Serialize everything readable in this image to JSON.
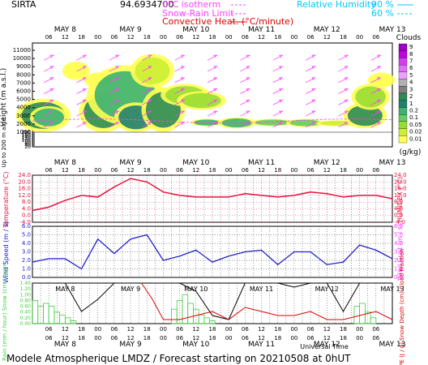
{
  "header": {
    "station": "SIRTA",
    "code": "94.6934700",
    "legend": {
      "isotherm": "0°C isotherm",
      "snow_rain": "Snow-Rain Limit",
      "convective": "Convective Heat. (°C/minute)",
      "rh": "Relative Humidity",
      "rh90": "90 %",
      "rh60": "60 %"
    }
  },
  "days": [
    "MAY  8",
    "MAY  9",
    "MAY 10",
    "MAY 11",
    "MAY 12",
    "MAY 13"
  ],
  "hours": [
    "06",
    "12",
    "18",
    "00"
  ],
  "colorbar": {
    "title": "Clouds",
    "unit": "(g/kg)",
    "ticks": [
      "9",
      "8",
      "7",
      "6",
      "5",
      "4",
      "3",
      "2",
      "1",
      "0.2",
      "0.1",
      "0.05",
      "0.02",
      "0.01"
    ],
    "colors": [
      "#a000c8",
      "#c000e0",
      "#d040f0",
      "#e070f8",
      "#f0a0ff",
      "#b0b0b0",
      "#808080",
      "#2e8b57",
      "#208070",
      "#3cb371",
      "#66cc66",
      "#99dd33",
      "#ccee33",
      "#ffff55"
    ]
  },
  "chart_data": [
    {
      "type": "heatmap",
      "title": "Clouds",
      "ylabel": "Height (m a.s.l.)",
      "ylabel2": "Up to 200 m a.g.l.",
      "yticks": [
        "11000",
        "10000",
        "9000",
        "8000",
        "7000",
        "6000",
        "5000",
        "4000",
        "3000",
        "2000",
        "1000",
        "200",
        "180",
        "160",
        "140",
        "120",
        "100",
        "80",
        "60",
        "40",
        "20"
      ],
      "xlabel": "Universal Time",
      "x_range_hours": [
        0,
        132
      ]
    },
    {
      "type": "line",
      "ylabel": "Temperature (°C)",
      "ylabel2": "HUMIDEX (°C)",
      "yticks": [
        "24.0",
        "20.0",
        "16.0",
        "12.0",
        "8.0",
        "4.0",
        "0.0",
        "-4.0"
      ],
      "ylim": [
        -4,
        24
      ],
      "x_hours": [
        0,
        6,
        12,
        18,
        24,
        30,
        36,
        42,
        48,
        54,
        60,
        66,
        72,
        78,
        84,
        90,
        96,
        102,
        108,
        114,
        120,
        126,
        132
      ],
      "series": [
        {
          "values": [
            3,
            5,
            9,
            12,
            11,
            17,
            22,
            20,
            14,
            12,
            11,
            11,
            11,
            13,
            12,
            11,
            12,
            14,
            13,
            11,
            12,
            12,
            10
          ]
        }
      ]
    },
    {
      "type": "line",
      "ylabel": "Wind Speed (m / s)",
      "ylabel2": "Wind Gust (m / s)",
      "yticks": [
        "6.0",
        "5.0",
        "4.0",
        "3.0",
        "2.0",
        "1.0",
        "0.0"
      ],
      "ylim": [
        0,
        6
      ],
      "x_hours": [
        0,
        6,
        12,
        18,
        24,
        30,
        36,
        42,
        48,
        54,
        60,
        66,
        72,
        78,
        84,
        90,
        96,
        102,
        108,
        114,
        120,
        126,
        132
      ],
      "series": [
        {
          "values": [
            1.8,
            2.2,
            2.2,
            1.0,
            4.5,
            2.8,
            4.5,
            5.0,
            2.0,
            2.5,
            3.2,
            1.8,
            2.5,
            3.0,
            3.2,
            1.5,
            3.0,
            3.0,
            1.5,
            1.8,
            3.8,
            3.2,
            2.2
          ]
        }
      ]
    },
    {
      "type": "bar",
      "ylabel": "Rain (mm / hour) Snow (cm / hour)",
      "ylabel2": "CAPE (J / g) Snow Depth (cm) Cloud Fraction",
      "yticks": [
        "1.40",
        "1.20",
        "1.00",
        "0.80",
        "0.60",
        "0.40",
        "0.20",
        "0.00"
      ],
      "ylim": [
        0,
        1.4
      ],
      "rain_hours": [
        1,
        3,
        5,
        7,
        9,
        11,
        13,
        15,
        52,
        54,
        56,
        58,
        60,
        62,
        64,
        66,
        119,
        121,
        123,
        125
      ],
      "rain_values": [
        0.8,
        0.6,
        0.7,
        0.6,
        0.4,
        0.3,
        0.2,
        0.1,
        0.5,
        0.8,
        1.0,
        0.7,
        0.5,
        0.3,
        0.2,
        0.1,
        0.6,
        0.7,
        0.4,
        0.2
      ],
      "cloud_fraction_hours": [
        0,
        6,
        12,
        18,
        24,
        30,
        36,
        42,
        48,
        54,
        60,
        66,
        72,
        78,
        84,
        90,
        96,
        102,
        108,
        114,
        120,
        126,
        132
      ],
      "cloud_fraction": [
        1.0,
        1.0,
        1.0,
        0.3,
        0.6,
        1.0,
        1.0,
        1.0,
        1.0,
        1.0,
        0.8,
        0.2,
        0.1,
        1.0,
        1.0,
        1.0,
        0.9,
        1.0,
        1.0,
        0.3,
        1.0,
        1.0,
        1.0
      ],
      "cape_hours": [
        40,
        44,
        48,
        54,
        60,
        66,
        72,
        78,
        84,
        90,
        96,
        102,
        108,
        114,
        120,
        126,
        132
      ],
      "cape": [
        1.0,
        0.6,
        0.1,
        0.1,
        0.2,
        0.3,
        0.1,
        0.4,
        0.3,
        0.2,
        0.2,
        0.3,
        0.1,
        0.1,
        0.2,
        0.3,
        0.1
      ]
    }
  ],
  "footer": {
    "title": "Modele Atmospherique LMDZ / Forecast starting on 20210508 at 0hUT",
    "axis": "Universal Time"
  },
  "colors": {
    "temp": "#e8103c",
    "wind": "#2020d0",
    "rain": "#40d040",
    "cape": "#e00000",
    "cf": "#000000",
    "rh": "#00c8ff",
    "iso": "#ff40ff"
  }
}
